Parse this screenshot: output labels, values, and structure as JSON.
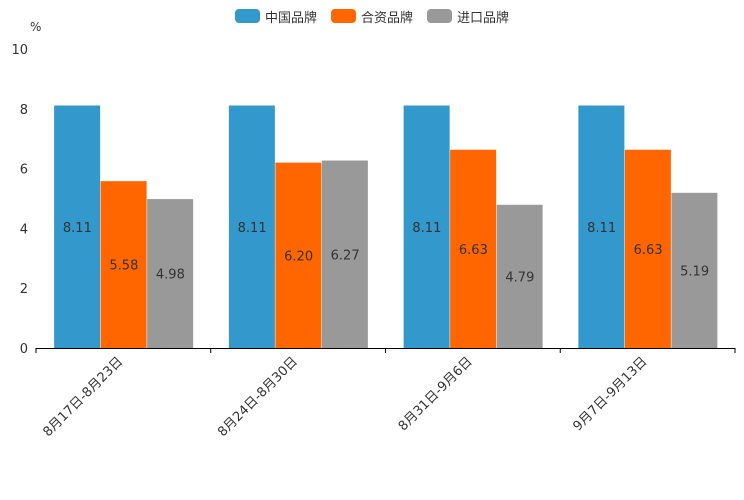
{
  "chart_data": {
    "type": "bar",
    "unit_label": "%",
    "categories": [
      "8月17日-8月23日",
      "8月24日-8月30日",
      "8月31日-9月6日",
      "9月7日-9月13日"
    ],
    "series": [
      {
        "name": "中国品牌",
        "color": "#3398CC",
        "values": [
          8.11,
          8.11,
          8.11,
          8.11
        ]
      },
      {
        "name": "合资品牌",
        "color": "#FF6600",
        "values": [
          5.58,
          6.2,
          6.63,
          6.63
        ]
      },
      {
        "name": "进口品牌",
        "color": "#999999",
        "values": [
          4.98,
          6.27,
          4.79,
          5.19
        ]
      }
    ],
    "ylim": [
      0,
      10
    ],
    "yticks": [
      0,
      2,
      4,
      6,
      8,
      10
    ],
    "legend_position": "top-center",
    "grid": false
  }
}
